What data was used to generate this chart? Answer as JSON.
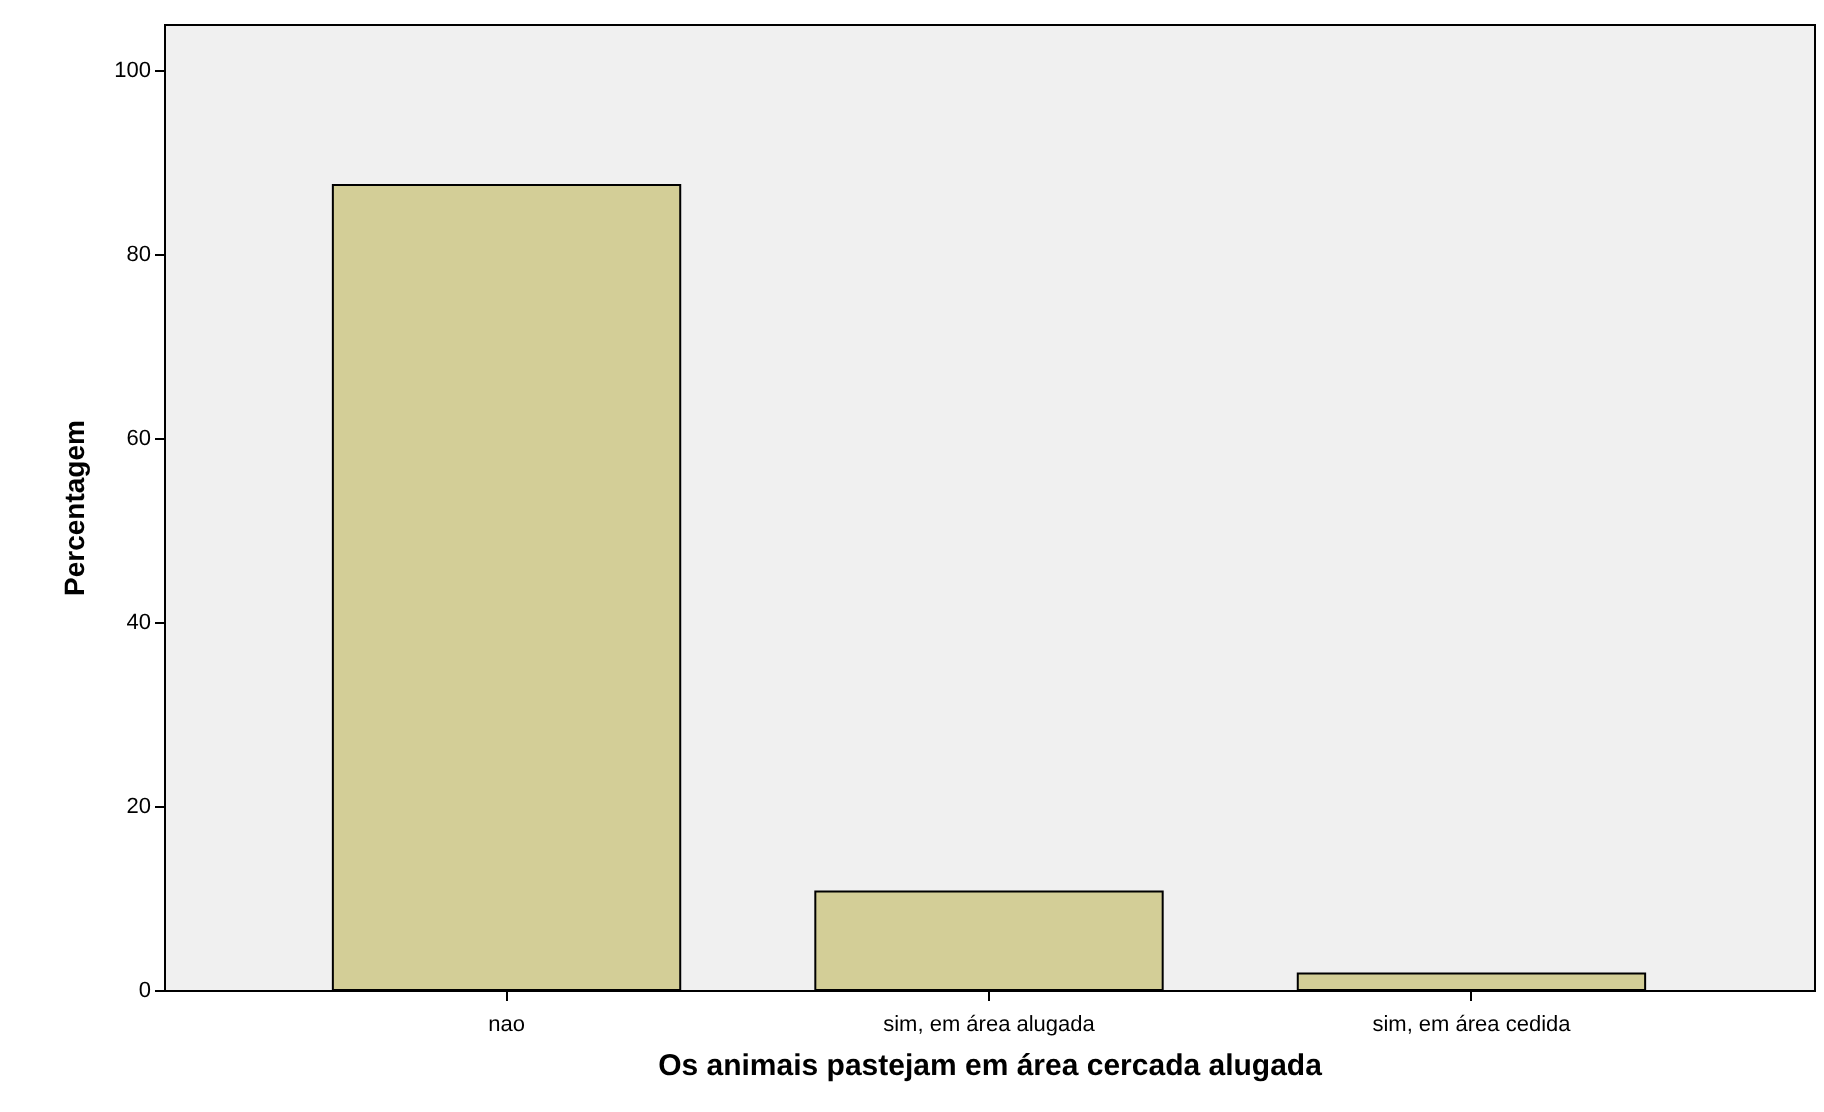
{
  "chart_data": {
    "type": "bar",
    "xlabel": "Os animais pastejam em área cercada alugada",
    "ylabel": "Percentagem",
    "categories": [
      "nao",
      "sim, em área alugada",
      "sim, em área cedida"
    ],
    "values": [
      87.5,
      10.7,
      1.8
    ],
    "color": "#d3ce97",
    "ylim": [
      0,
      105
    ],
    "yticks": [
      0,
      20,
      40,
      60,
      80,
      100
    ],
    "grid": false
  }
}
